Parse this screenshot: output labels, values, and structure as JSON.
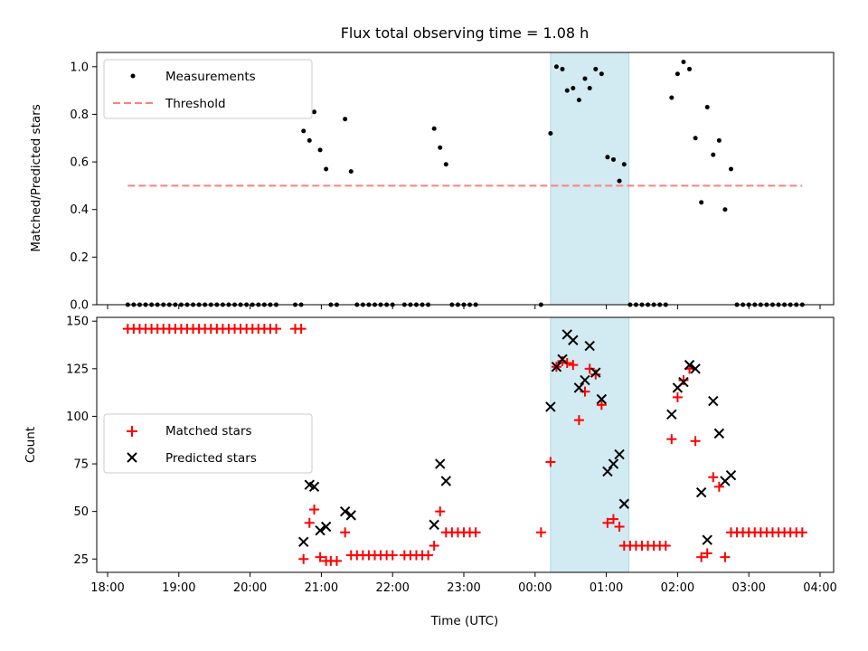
{
  "chart_data": [
    {
      "type": "scatter",
      "title": "Flux total observing time = 1.08 h",
      "xlabel": "",
      "ylabel": "Matched/Predicted stars",
      "ylim": [
        0,
        1.06
      ],
      "yticks": [
        "0.0",
        "0.2",
        "0.4",
        "0.6",
        "0.8",
        "1.0"
      ],
      "highlight_span": {
        "x0": "00:13",
        "x1": "01:19",
        "color": "#add8e6"
      },
      "legend": {
        "position": "upper-left",
        "entries": [
          "Measurements",
          "Threshold"
        ]
      },
      "series": [
        {
          "name": "Measurements",
          "color": "#000000",
          "marker": "dot",
          "points": [
            [
              "18:17",
              0
            ],
            [
              "18:22",
              0
            ],
            [
              "18:27",
              0
            ],
            [
              "18:32",
              0
            ],
            [
              "18:37",
              0
            ],
            [
              "18:42",
              0
            ],
            [
              "18:47",
              0
            ],
            [
              "18:52",
              0
            ],
            [
              "18:57",
              0
            ],
            [
              "19:02",
              0
            ],
            [
              "19:07",
              0
            ],
            [
              "19:12",
              0
            ],
            [
              "19:17",
              0
            ],
            [
              "19:22",
              0
            ],
            [
              "19:27",
              0
            ],
            [
              "19:32",
              0
            ],
            [
              "19:37",
              0
            ],
            [
              "19:42",
              0
            ],
            [
              "19:47",
              0
            ],
            [
              "19:52",
              0
            ],
            [
              "19:57",
              0
            ],
            [
              "20:02",
              0
            ],
            [
              "20:07",
              0
            ],
            [
              "20:12",
              0
            ],
            [
              "20:17",
              0
            ],
            [
              "20:22",
              0
            ],
            [
              "20:38",
              0
            ],
            [
              "20:43",
              0
            ],
            [
              "20:45",
              0.73
            ],
            [
              "20:50",
              0.69
            ],
            [
              "20:54",
              0.81
            ],
            [
              "20:59",
              0.65
            ],
            [
              "21:04",
              0.57
            ],
            [
              "21:08",
              0
            ],
            [
              "21:13",
              0
            ],
            [
              "21:20",
              0.78
            ],
            [
              "21:25",
              0.56
            ],
            [
              "21:30",
              0
            ],
            [
              "21:35",
              0
            ],
            [
              "21:40",
              0
            ],
            [
              "21:45",
              0
            ],
            [
              "21:50",
              0
            ],
            [
              "21:55",
              0
            ],
            [
              "22:00",
              0
            ],
            [
              "22:10",
              0
            ],
            [
              "22:15",
              0
            ],
            [
              "22:20",
              0
            ],
            [
              "22:25",
              0
            ],
            [
              "22:30",
              0
            ],
            [
              "22:35",
              0.74
            ],
            [
              "22:40",
              0.66
            ],
            [
              "22:45",
              0.59
            ],
            [
              "22:50",
              0
            ],
            [
              "22:55",
              0
            ],
            [
              "23:00",
              0
            ],
            [
              "23:05",
              0
            ],
            [
              "23:10",
              0
            ],
            [
              "00:05",
              0
            ],
            [
              "00:13",
              0.72
            ],
            [
              "00:18",
              1.0
            ],
            [
              "00:23",
              0.99
            ],
            [
              "00:27",
              0.9
            ],
            [
              "00:32",
              0.91
            ],
            [
              "00:37",
              0.86
            ],
            [
              "00:42",
              0.95
            ],
            [
              "00:46",
              0.91
            ],
            [
              "00:51",
              0.99
            ],
            [
              "00:56",
              0.97
            ],
            [
              "01:01",
              0.62
            ],
            [
              "01:06",
              0.61
            ],
            [
              "01:11",
              0.52
            ],
            [
              "01:15",
              0.59
            ],
            [
              "01:20",
              0
            ],
            [
              "01:25",
              0
            ],
            [
              "01:30",
              0
            ],
            [
              "01:35",
              0
            ],
            [
              "01:40",
              0
            ],
            [
              "01:45",
              0
            ],
            [
              "01:50",
              0
            ],
            [
              "01:55",
              0.87
            ],
            [
              "02:00",
              0.97
            ],
            [
              "02:05",
              1.02
            ],
            [
              "02:10",
              0.99
            ],
            [
              "02:15",
              0.7
            ],
            [
              "02:20",
              0.43
            ],
            [
              "02:25",
              0.83
            ],
            [
              "02:30",
              0.63
            ],
            [
              "02:35",
              0.69
            ],
            [
              "02:40",
              0.4
            ],
            [
              "02:45",
              0.57
            ],
            [
              "02:50",
              0
            ],
            [
              "02:55",
              0
            ],
            [
              "03:00",
              0
            ],
            [
              "03:05",
              0
            ],
            [
              "03:10",
              0
            ],
            [
              "03:15",
              0
            ],
            [
              "03:20",
              0
            ],
            [
              "03:25",
              0
            ],
            [
              "03:30",
              0
            ],
            [
              "03:35",
              0
            ],
            [
              "03:40",
              0
            ],
            [
              "03:45",
              0
            ]
          ]
        },
        {
          "name": "Threshold",
          "color": "#ff7f7f",
          "style": "dashed",
          "points": [
            [
              "18:17",
              0.5
            ],
            [
              "03:45",
              0.5
            ]
          ]
        }
      ]
    },
    {
      "type": "scatter",
      "title": "",
      "xlabel": "Time (UTC)",
      "ylabel": "Count",
      "ylim": [
        18,
        152
      ],
      "yticks": [
        "25",
        "50",
        "75",
        "100",
        "125",
        "150"
      ],
      "xticks": [
        "18:00",
        "19:00",
        "20:00",
        "21:00",
        "22:00",
        "23:00",
        "00:00",
        "01:00",
        "02:00",
        "03:00",
        "04:00"
      ],
      "highlight_span": {
        "x0": "00:13",
        "x1": "01:19",
        "color": "#add8e6"
      },
      "legend": {
        "position": "center-left",
        "entries": [
          "Matched stars",
          "Predicted stars"
        ]
      },
      "series": [
        {
          "name": "Matched stars",
          "color": "#ff0000",
          "marker": "plus",
          "points": [
            [
              "18:17",
              146
            ],
            [
              "18:22",
              146
            ],
            [
              "18:27",
              146
            ],
            [
              "18:32",
              146
            ],
            [
              "18:37",
              146
            ],
            [
              "18:42",
              146
            ],
            [
              "18:47",
              146
            ],
            [
              "18:52",
              146
            ],
            [
              "18:57",
              146
            ],
            [
              "19:02",
              146
            ],
            [
              "19:07",
              146
            ],
            [
              "19:12",
              146
            ],
            [
              "19:17",
              146
            ],
            [
              "19:22",
              146
            ],
            [
              "19:27",
              146
            ],
            [
              "19:32",
              146
            ],
            [
              "19:37",
              146
            ],
            [
              "19:42",
              146
            ],
            [
              "19:47",
              146
            ],
            [
              "19:52",
              146
            ],
            [
              "19:57",
              146
            ],
            [
              "20:02",
              146
            ],
            [
              "20:07",
              146
            ],
            [
              "20:12",
              146
            ],
            [
              "20:17",
              146
            ],
            [
              "20:22",
              146
            ],
            [
              "20:38",
              146
            ],
            [
              "20:43",
              146
            ],
            [
              "20:45",
              25
            ],
            [
              "20:50",
              44
            ],
            [
              "20:54",
              51
            ],
            [
              "20:59",
              26
            ],
            [
              "21:04",
              24
            ],
            [
              "21:08",
              24
            ],
            [
              "21:13",
              24
            ],
            [
              "21:20",
              39
            ],
            [
              "21:25",
              27
            ],
            [
              "21:30",
              27
            ],
            [
              "21:35",
              27
            ],
            [
              "21:40",
              27
            ],
            [
              "21:45",
              27
            ],
            [
              "21:50",
              27
            ],
            [
              "21:55",
              27
            ],
            [
              "22:00",
              27
            ],
            [
              "22:10",
              27
            ],
            [
              "22:15",
              27
            ],
            [
              "22:20",
              27
            ],
            [
              "22:25",
              27
            ],
            [
              "22:30",
              27
            ],
            [
              "22:35",
              32
            ],
            [
              "22:40",
              50
            ],
            [
              "22:45",
              39
            ],
            [
              "22:50",
              39
            ],
            [
              "22:55",
              39
            ],
            [
              "23:00",
              39
            ],
            [
              "23:05",
              39
            ],
            [
              "23:10",
              39
            ],
            [
              "00:05",
              39
            ],
            [
              "00:13",
              76
            ],
            [
              "00:18",
              126
            ],
            [
              "00:23",
              129
            ],
            [
              "00:27",
              128
            ],
            [
              "00:32",
              127
            ],
            [
              "00:37",
              98
            ],
            [
              "00:42",
              113
            ],
            [
              "00:46",
              125
            ],
            [
              "00:51",
              122
            ],
            [
              "00:56",
              106
            ],
            [
              "01:01",
              44
            ],
            [
              "01:06",
              46
            ],
            [
              "01:11",
              42
            ],
            [
              "01:15",
              32
            ],
            [
              "01:20",
              32
            ],
            [
              "01:25",
              32
            ],
            [
              "01:30",
              32
            ],
            [
              "01:35",
              32
            ],
            [
              "01:40",
              32
            ],
            [
              "01:45",
              32
            ],
            [
              "01:50",
              32
            ],
            [
              "01:55",
              88
            ],
            [
              "02:00",
              110
            ],
            [
              "02:05",
              119
            ],
            [
              "02:10",
              125
            ],
            [
              "02:15",
              87
            ],
            [
              "02:20",
              26
            ],
            [
              "02:25",
              28
            ],
            [
              "02:30",
              68
            ],
            [
              "02:35",
              63
            ],
            [
              "02:40",
              26
            ],
            [
              "02:45",
              39
            ],
            [
              "02:50",
              39
            ],
            [
              "02:55",
              39
            ],
            [
              "03:00",
              39
            ],
            [
              "03:05",
              39
            ],
            [
              "03:10",
              39
            ],
            [
              "03:15",
              39
            ],
            [
              "03:20",
              39
            ],
            [
              "03:25",
              39
            ],
            [
              "03:30",
              39
            ],
            [
              "03:35",
              39
            ],
            [
              "03:40",
              39
            ],
            [
              "03:45",
              39
            ]
          ]
        },
        {
          "name": "Predicted stars",
          "color": "#000000",
          "marker": "x",
          "points": [
            [
              "20:45",
              34
            ],
            [
              "20:50",
              64
            ],
            [
              "20:54",
              63
            ],
            [
              "20:59",
              40
            ],
            [
              "21:04",
              42
            ],
            [
              "21:20",
              50
            ],
            [
              "21:25",
              48
            ],
            [
              "22:35",
              43
            ],
            [
              "22:40",
              75
            ],
            [
              "22:45",
              66
            ],
            [
              "00:13",
              105
            ],
            [
              "00:18",
              126
            ],
            [
              "00:23",
              130
            ],
            [
              "00:27",
              143
            ],
            [
              "00:32",
              140
            ],
            [
              "00:37",
              115
            ],
            [
              "00:42",
              119
            ],
            [
              "00:46",
              137
            ],
            [
              "00:51",
              123
            ],
            [
              "00:56",
              109
            ],
            [
              "01:01",
              71
            ],
            [
              "01:06",
              75
            ],
            [
              "01:11",
              80
            ],
            [
              "01:15",
              54
            ],
            [
              "01:55",
              101
            ],
            [
              "02:00",
              115
            ],
            [
              "02:05",
              118
            ],
            [
              "02:10",
              127
            ],
            [
              "02:15",
              125
            ],
            [
              "02:20",
              60
            ],
            [
              "02:25",
              35
            ],
            [
              "02:30",
              108
            ],
            [
              "02:35",
              91
            ],
            [
              "02:40",
              66
            ],
            [
              "02:45",
              69
            ]
          ]
        }
      ]
    }
  ]
}
